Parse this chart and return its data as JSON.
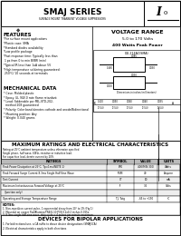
{
  "title": "SMAJ SERIES",
  "subtitle": "SURFACE MOUNT TRANSIENT VOLTAGE SUPPRESSORS",
  "symbol_text": "I",
  "symbol_sub": "o",
  "voltage_range_title": "VOLTAGE RANGE",
  "voltage_range_value": "5.0 to 170 Volts",
  "power_value": "400 Watts Peak Power",
  "features_title": "FEATURES",
  "feature_lines": [
    "*For surface mount applications",
    "*Plastic case: SMA",
    "*Standard diodes availability",
    "*Low profile package",
    "*Fast response time: Typically less than",
    " 1 ps from 0 to min BVBR (min)",
    "*Typical IR less than 1uA above 5V",
    "*High temperature soldering guaranteed:",
    " 250°C/ 10 seconds at terminals"
  ],
  "mech_title": "MECHANICAL DATA",
  "mech_lines": [
    "* Case: Molded plastic",
    "* Epoxy: UL 94V-0 rate flame retardant",
    "* Lead: Solderable per MIL-STD-202,",
    "  method 208 guaranteed",
    "* Polarity: Color band denotes cathode and anode/Bidirectional",
    "* Mounting position: Any",
    "* Weight: 0.040 grams"
  ],
  "pkg_label": "DO-214AC(SMA)",
  "dim_note": "Dimensions in inches (millimeters)",
  "max_title": "MAXIMUM RATINGS AND ELECTRICAL CHARACTERISTICS",
  "note1": "Rating at 25°C ambient temperature unless otherwise specified",
  "note2": "Single phase, half wave, 60Hz, resistive or inductive load.",
  "note3": "For capacitive load, derate current by 20%",
  "th_ratings": "RATINGS",
  "th_symbol": "SYMBOL",
  "th_value": "VALUE",
  "th_units": "UNITS",
  "table_rows": [
    [
      "Peak Power Dissipation at 25°C, Tp=1ms(NOTE 1)",
      "PPK",
      "400(MIN 300)",
      "Watts"
    ],
    [
      "Peak Forward Surge Current 8.3ms Single Half Sine Wave",
      "IFSM",
      "40",
      "Ampere"
    ],
    [
      "Test Current",
      "IT",
      "10",
      "mA"
    ],
    [
      "Maximum Instantaneous Forward Voltage at 25°C",
      "IF",
      "3.5",
      "Volts"
    ],
    [
      "  (Junction only)",
      "",
      "",
      ""
    ],
    [
      "Operating and Storage Temperature Range",
      "TJ, Tstg",
      "-65 to +150",
      "°C"
    ]
  ],
  "notes_hdr": "NOTES:",
  "notes_lines": [
    "1. Non-repetitive current pulse, 1 exponential decay from 10° to 1% (Fig 1)",
    "2. Mounted on copper Pad/Alumina/FR4/G-10 PCB 0.2x0.2 inches 0.025x.",
    "3. 8.3ms single half-sine wave, duty cycle = 4 pulses per minute maximum."
  ],
  "bipolar_title": "DEVICES FOR BIPOLAR APPLICATIONS",
  "bipolar_lines": [
    "1. For bidirectional use, a CA suffix to above device designations (SMAJ5CA)",
    "2. Electrical characteristics apply in both directions"
  ]
}
